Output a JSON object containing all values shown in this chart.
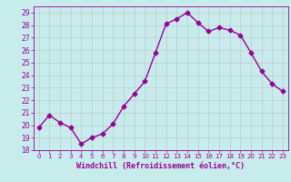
{
  "hours": [
    0,
    1,
    2,
    3,
    4,
    5,
    6,
    7,
    8,
    9,
    10,
    11,
    12,
    13,
    14,
    15,
    16,
    17,
    18,
    19,
    20,
    21,
    22,
    23
  ],
  "values": [
    19.8,
    20.8,
    20.2,
    19.8,
    18.5,
    19.0,
    19.3,
    20.1,
    21.5,
    22.5,
    23.5,
    25.8,
    28.1,
    28.5,
    29.0,
    28.2,
    27.5,
    27.8,
    27.6,
    27.2,
    25.8,
    24.3,
    23.3,
    22.7
  ],
  "color": "#990099",
  "bg_color": "#c8ecec",
  "grid_color": "#aaaaaa",
  "xlabel": "Windchill (Refroidissement éolien,°C)",
  "ylim": [
    18,
    29.5
  ],
  "yticks": [
    18,
    19,
    20,
    21,
    22,
    23,
    24,
    25,
    26,
    27,
    28,
    29
  ],
  "xtick_labels": [
    "0",
    "1",
    "2",
    "3",
    "4",
    "5",
    "6",
    "7",
    "8",
    "9",
    "10",
    "11",
    "12",
    "13",
    "14",
    "15",
    "16",
    "17",
    "18",
    "19",
    "20",
    "21",
    "22",
    "23"
  ],
  "marker": "D",
  "markersize": 2.5,
  "linewidth": 1.0
}
